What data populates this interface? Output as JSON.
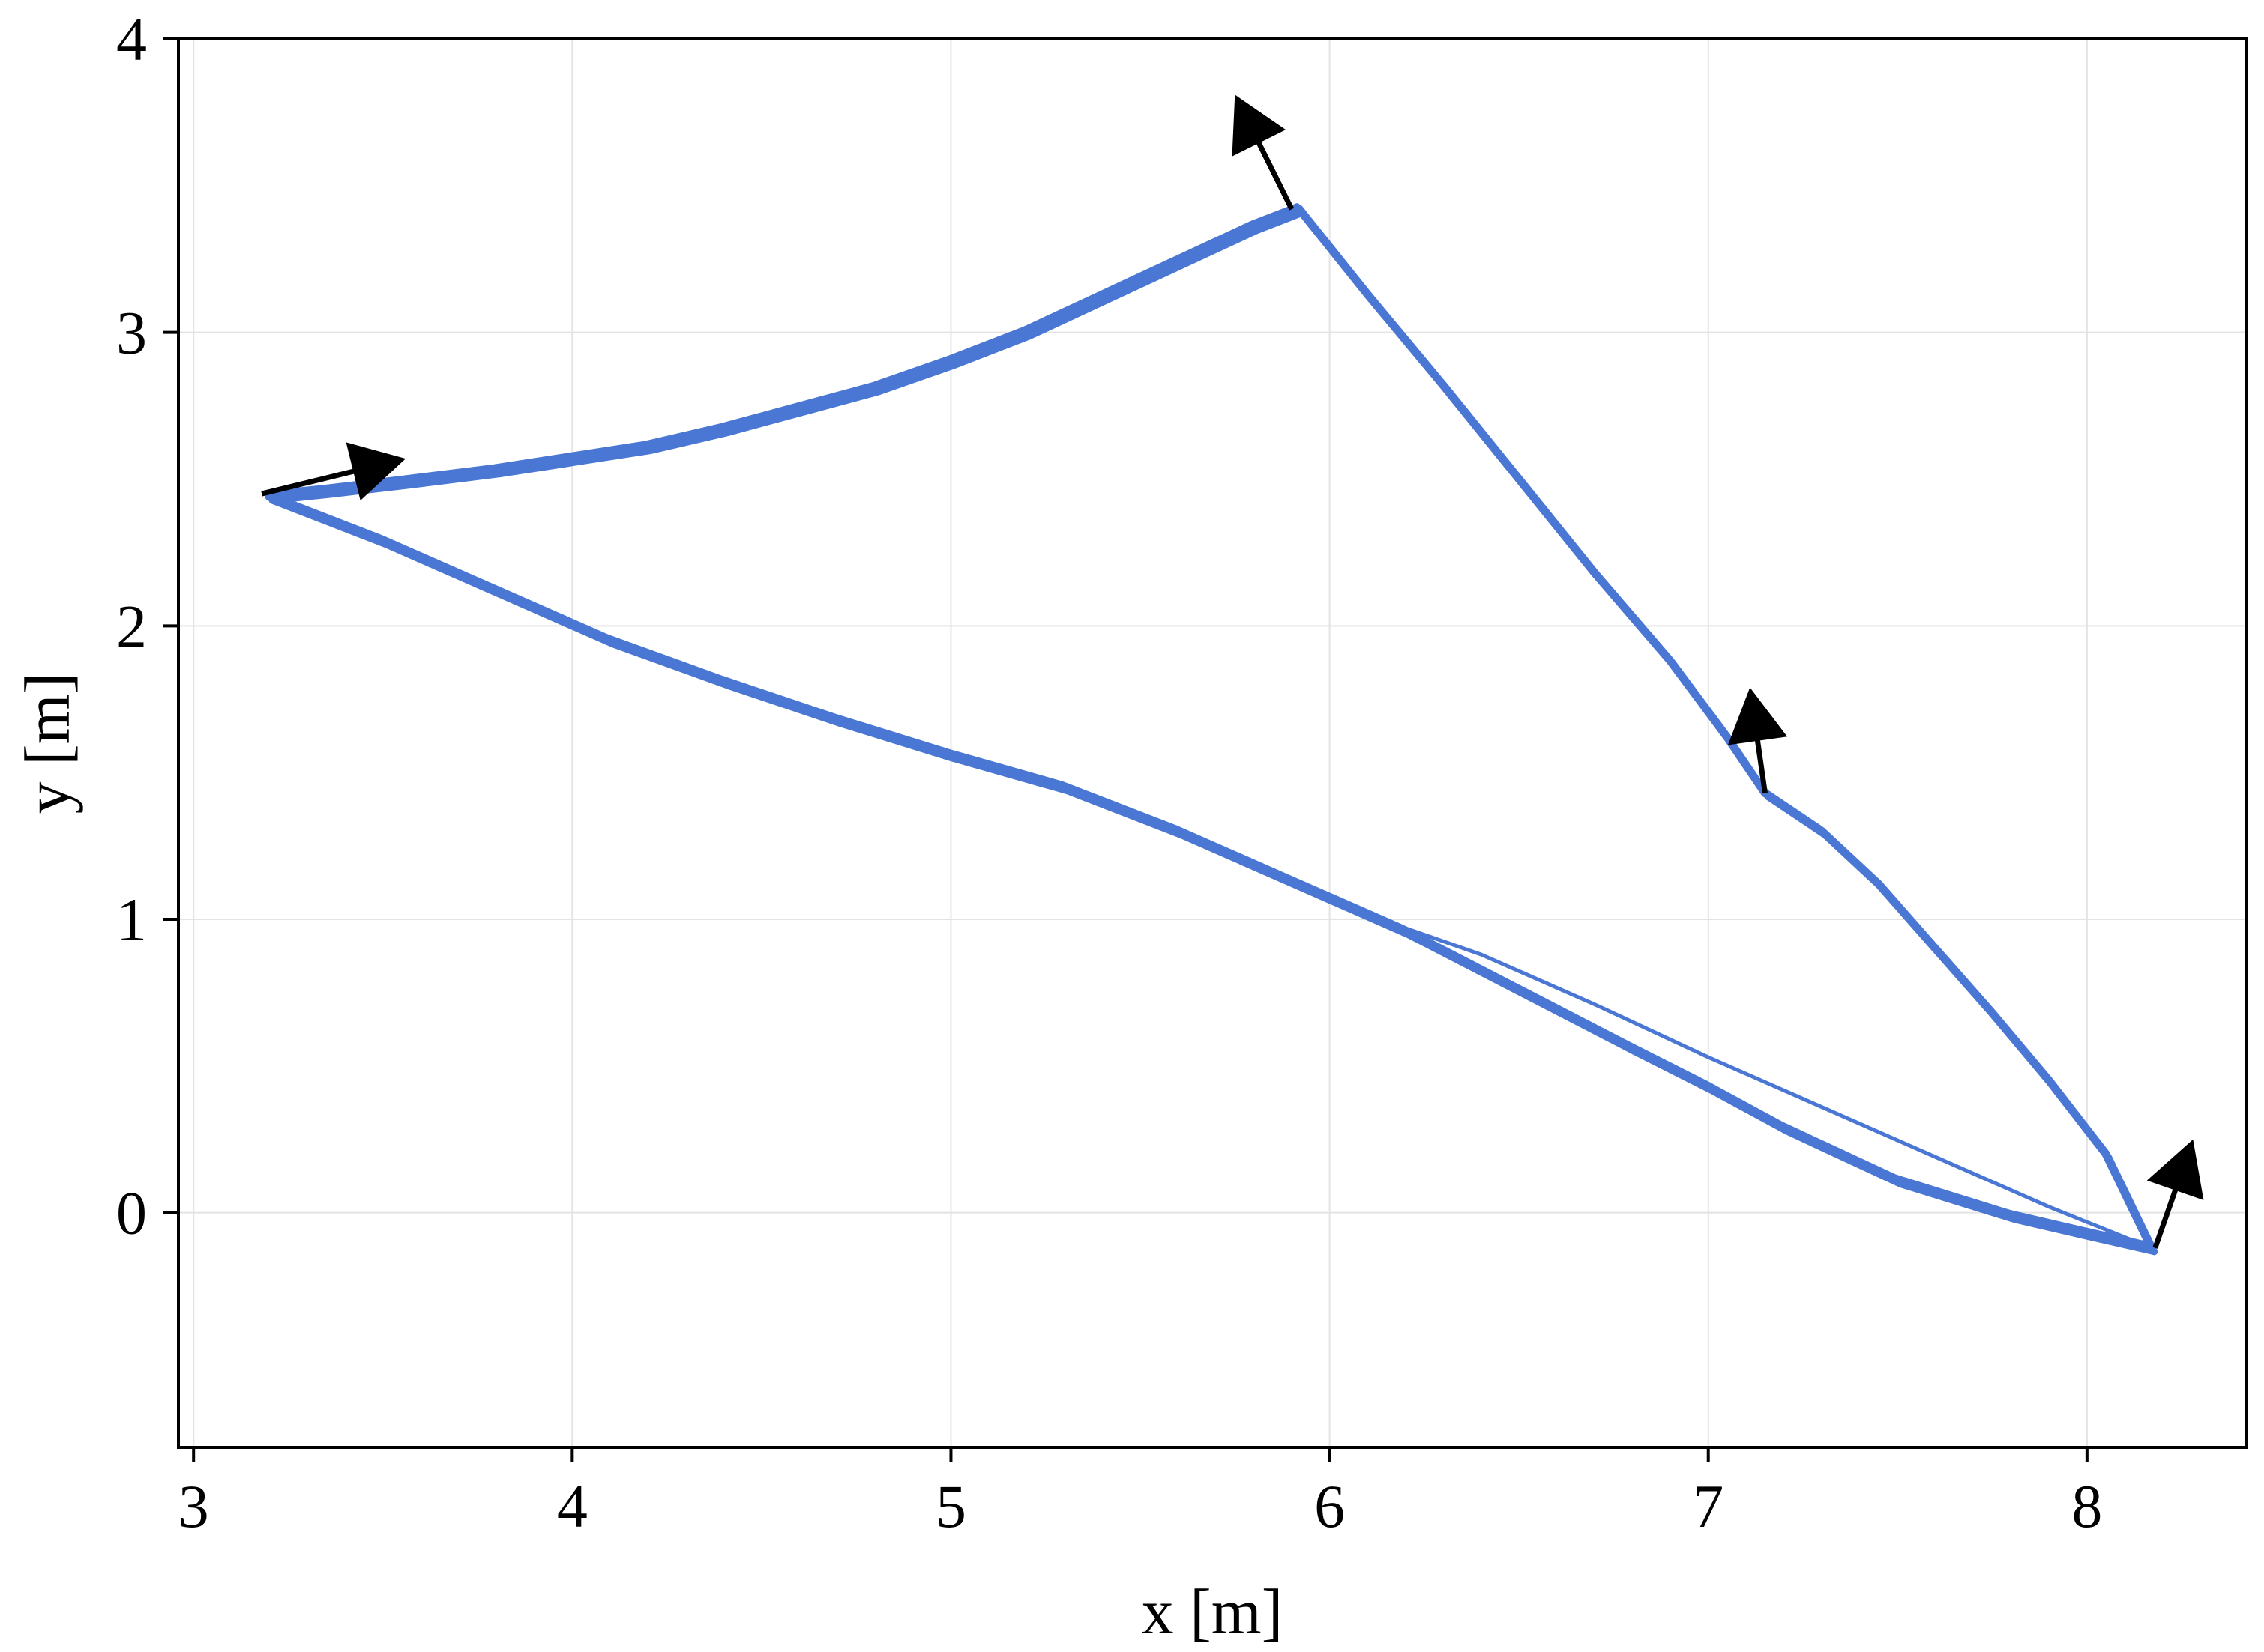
{
  "chart_data": {
    "type": "line",
    "title": "",
    "xlabel": "x [m]",
    "ylabel": "y [m]",
    "xlim": [
      2.96,
      8.42
    ],
    "ylim": [
      -0.8,
      4.0
    ],
    "xticks": [
      3,
      4,
      5,
      6,
      7,
      8
    ],
    "yticks": [
      0,
      1,
      2,
      3,
      4
    ],
    "x_tick_labels": [
      "3",
      "4",
      "5",
      "6",
      "7",
      "8"
    ],
    "y_tick_labels": [
      "0",
      "1",
      "2",
      "3",
      "4"
    ],
    "grid": true,
    "line_color": "#4a77d4",
    "arrow_color": "#000000",
    "series": [
      {
        "x": [
          3.2,
          3.35,
          3.55,
          3.8,
          4.0,
          4.2,
          4.4,
          4.6,
          4.8,
          5.0,
          5.2,
          5.4,
          5.6,
          5.8,
          5.92
        ],
        "y": [
          2.44,
          2.46,
          2.49,
          2.53,
          2.57,
          2.61,
          2.67,
          2.74,
          2.81,
          2.9,
          3.0,
          3.12,
          3.24,
          3.36,
          3.42
        ]
      },
      {
        "x": [
          5.92,
          6.1,
          6.3,
          6.5,
          6.7,
          6.9,
          7.05,
          7.15
        ],
        "y": [
          3.42,
          3.13,
          2.82,
          2.5,
          2.18,
          1.88,
          1.62,
          1.43
        ]
      },
      {
        "x": [
          7.15,
          7.3,
          7.45,
          7.6,
          7.75,
          7.9,
          8.05,
          8.17
        ],
        "y": [
          1.43,
          1.3,
          1.12,
          0.9,
          0.68,
          0.45,
          0.2,
          -0.12
        ]
      },
      {
        "x": [
          8.17,
          8.0,
          7.8,
          7.5,
          7.2,
          7.0,
          6.8,
          6.5,
          6.2,
          5.9,
          5.6,
          5.3,
          5.0,
          4.7,
          4.4,
          4.1,
          3.8,
          3.5,
          3.3,
          3.2
        ],
        "y": [
          -0.12,
          -0.07,
          -0.01,
          0.11,
          0.29,
          0.43,
          0.56,
          0.76,
          0.96,
          1.13,
          1.3,
          1.45,
          1.56,
          1.68,
          1.81,
          1.95,
          2.12,
          2.29,
          2.39,
          2.44
        ]
      },
      {
        "x": [
          8.17,
          7.9,
          7.6,
          7.3,
          7.0,
          6.7,
          6.4,
          6.2
        ],
        "y": [
          -0.12,
          0.02,
          0.19,
          0.36,
          0.53,
          0.71,
          0.88,
          0.97
        ]
      }
    ],
    "arrows": [
      {
        "x": 3.18,
        "y": 2.45,
        "dx": 0.38,
        "dy": 0.12
      },
      {
        "x": 5.9,
        "y": 3.42,
        "dx": -0.15,
        "dy": 0.39
      },
      {
        "x": 7.15,
        "y": 1.43,
        "dx": -0.04,
        "dy": 0.36
      },
      {
        "x": 8.18,
        "y": -0.12,
        "dx": 0.1,
        "dy": 0.37
      }
    ]
  }
}
